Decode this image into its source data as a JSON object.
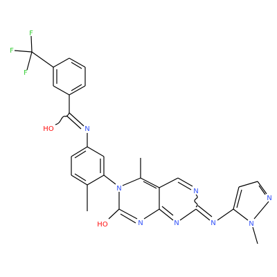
{
  "atoms": [
    {
      "label": "F",
      "color": "#33cc33"
    },
    {
      "label": "F",
      "color": "#33cc33"
    },
    {
      "label": "F",
      "color": "#33cc33"
    },
    {
      "label": "HO",
      "color": "#ff0d0d"
    },
    {
      "label": "N",
      "color": "#3050f8"
    },
    {
      "label": "N",
      "color": "#3050f8"
    },
    {
      "label": "N",
      "color": "#3050f8"
    },
    {
      "label": "HO",
      "color": "#ff0d0d"
    },
    {
      "label": "N",
      "color": "#3050f8"
    },
    {
      "label": "N",
      "color": "#3050f8"
    },
    {
      "label": "N",
      "color": "#3050f8"
    },
    {
      "label": "N",
      "color": "#3050f8"
    },
    {
      "label": "N",
      "color": "#3050f8"
    }
  ]
}
